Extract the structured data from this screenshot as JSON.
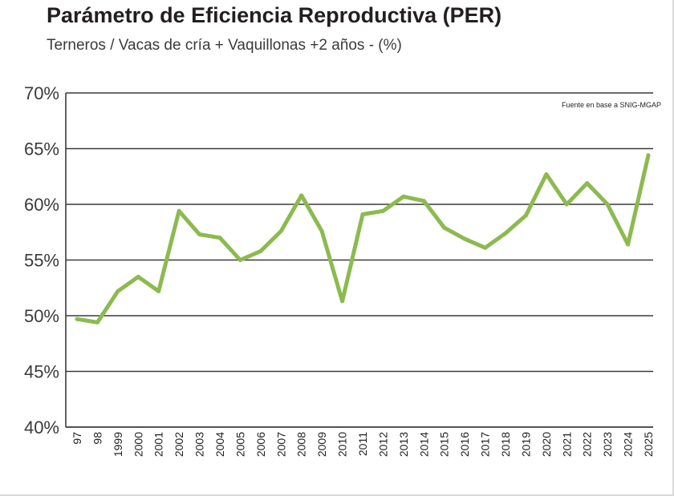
{
  "title": "Parámetro de Eficiencia Reproductiva (PER)",
  "subtitle": "Terneros / Vacas de cría + Vaquillonas +2 años - (%)",
  "source": "Fuente en base a SNIG-MGAP",
  "colors": {
    "line": "#8cba4f",
    "grid": "#3a3a3a",
    "text": "#231f20"
  },
  "chart_data": {
    "type": "line",
    "title": "Parámetro de Eficiencia Reproductiva (PER)",
    "subtitle": "Terneros / Vacas de cría + Vaquillonas +2 años - (%)",
    "xlabel": "",
    "ylabel": "",
    "ylim": [
      40,
      70
    ],
    "yticks": [
      70,
      65,
      60,
      55,
      50,
      45,
      40
    ],
    "ytick_labels": [
      "70%",
      "65%",
      "60%",
      "55%",
      "50%",
      "45%",
      "40%"
    ],
    "grid": true,
    "categories": [
      "97",
      "98",
      "1999",
      "2000",
      "2001",
      "2002",
      "2003",
      "2004",
      "2005",
      "2006",
      "2007",
      "2008",
      "2009",
      "2010",
      "2011",
      "2012",
      "2013",
      "2014",
      "2015",
      "2016",
      "2017",
      "2018",
      "2019",
      "2020",
      "2021",
      "2022",
      "2023",
      "2024",
      "2025"
    ],
    "series": [
      {
        "values": [
          49.7,
          49.4,
          52.2,
          53.5,
          52.2,
          59.4,
          57.3,
          57.0,
          55.0,
          55.8,
          57.6,
          60.8,
          57.6,
          51.3,
          59.1,
          59.4,
          60.7,
          60.3,
          57.9,
          56.9,
          56.1,
          57.4,
          59.0,
          62.7,
          60.0,
          61.9,
          60.0,
          56.4,
          64.4
        ]
      }
    ]
  }
}
